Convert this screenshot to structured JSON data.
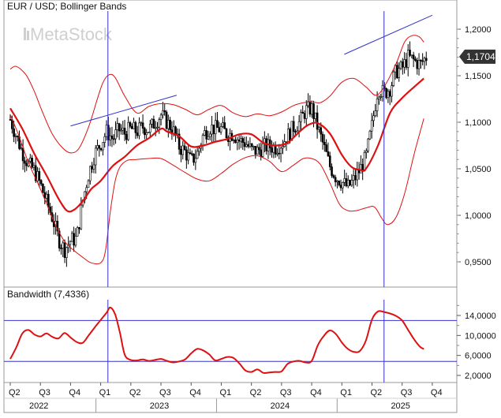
{
  "chart_data": [
    {
      "type": "candlestick",
      "title": "EUR / USD; Bollinger Bands",
      "watermark": "MetaStock",
      "last_price_label": "1,1704",
      "ylim": [
        0.92,
        1.225
      ],
      "y_ticks": [
        "1,2000",
        "1,1500",
        "1,1000",
        "1,0500",
        "1,0000",
        "0,9500"
      ],
      "y_tick_values": [
        1.2,
        1.15,
        1.1,
        1.05,
        1.0,
        0.95
      ],
      "x_range": [
        2022.25,
        2025.875
      ],
      "series": [
        {
          "name": "Middle band",
          "color": "#dd1111",
          "x": [
            2022.25,
            2022.35,
            2022.45,
            2022.55,
            2022.65,
            2022.72,
            2022.78,
            2022.85,
            2022.92,
            2023.0,
            2023.1,
            2023.2,
            2023.3,
            2023.4,
            2023.5,
            2023.55,
            2023.65,
            2023.75,
            2023.85,
            2023.95,
            2024.05,
            2024.15,
            2024.25,
            2024.35,
            2024.45,
            2024.55,
            2024.65,
            2024.72,
            2024.8,
            2024.9,
            2025.0,
            2025.08,
            2025.15,
            2025.2,
            2025.3,
            2025.4,
            2025.5,
            2025.6,
            2025.68
          ],
          "values": [
            1.115,
            1.093,
            1.066,
            1.043,
            1.018,
            1.005,
            1.006,
            1.015,
            1.028,
            1.037,
            1.053,
            1.063,
            1.075,
            1.083,
            1.093,
            1.09,
            1.085,
            1.074,
            1.075,
            1.079,
            1.082,
            1.087,
            1.087,
            1.078,
            1.075,
            1.078,
            1.09,
            1.097,
            1.099,
            1.088,
            1.065,
            1.052,
            1.049,
            1.05,
            1.075,
            1.11,
            1.126,
            1.138,
            1.147
          ]
        },
        {
          "name": "Upper band",
          "color": "#dd1111",
          "x": [
            2022.25,
            2022.3,
            2022.38,
            2022.45,
            2022.52,
            2022.6,
            2022.68,
            2022.75,
            2022.82,
            2022.9,
            2022.97,
            2023.02,
            2023.07,
            2023.12,
            2023.2,
            2023.3,
            2023.4,
            2023.5,
            2023.6,
            2023.7,
            2023.8,
            2023.9,
            2024.0,
            2024.1,
            2024.2,
            2024.3,
            2024.4,
            2024.5,
            2024.6,
            2024.68,
            2024.75,
            2024.82,
            2024.9,
            2025.0,
            2025.1,
            2025.2,
            2025.28,
            2025.35,
            2025.45,
            2025.52,
            2025.58,
            2025.64,
            2025.68
          ],
          "values": [
            1.157,
            1.16,
            1.151,
            1.133,
            1.11,
            1.087,
            1.073,
            1.067,
            1.072,
            1.095,
            1.124,
            1.143,
            1.151,
            1.148,
            1.128,
            1.11,
            1.117,
            1.12,
            1.119,
            1.114,
            1.108,
            1.114,
            1.118,
            1.11,
            1.106,
            1.109,
            1.107,
            1.111,
            1.118,
            1.121,
            1.122,
            1.121,
            1.128,
            1.143,
            1.147,
            1.138,
            1.129,
            1.138,
            1.163,
            1.186,
            1.193,
            1.192,
            1.186
          ]
        },
        {
          "name": "Lower band",
          "color": "#dd1111",
          "x": [
            2022.25,
            2022.32,
            2022.4,
            2022.48,
            2022.55,
            2022.62,
            2022.7,
            2022.78,
            2022.85,
            2022.92,
            2023.0,
            2023.04,
            2023.08,
            2023.12,
            2023.16,
            2023.22,
            2023.3,
            2023.4,
            2023.5,
            2023.6,
            2023.7,
            2023.8,
            2023.9,
            2024.0,
            2024.1,
            2024.2,
            2024.3,
            2024.4,
            2024.5,
            2024.6,
            2024.68,
            2024.75,
            2024.82,
            2024.9,
            2024.98,
            2025.05,
            2025.12,
            2025.2,
            2025.27,
            2025.33,
            2025.38,
            2025.45,
            2025.52,
            2025.6,
            2025.68
          ],
          "values": [
            1.108,
            1.086,
            1.057,
            1.034,
            1.013,
            0.991,
            0.972,
            0.962,
            0.955,
            0.949,
            0.949,
            0.962,
            1.004,
            1.037,
            1.052,
            1.059,
            1.06,
            1.061,
            1.061,
            1.054,
            1.046,
            1.039,
            1.037,
            1.045,
            1.055,
            1.062,
            1.064,
            1.058,
            1.047,
            1.054,
            1.061,
            1.061,
            1.055,
            1.035,
            1.012,
            1.005,
            1.005,
            1.008,
            1.009,
            0.997,
            0.99,
            0.998,
            1.023,
            1.066,
            1.104
          ]
        }
      ],
      "trendlines": [
        {
          "color": "#3333cc",
          "x": [
            2022.75,
            2023.63
          ],
          "values": [
            1.096,
            1.129
          ]
        },
        {
          "color": "#3333cc",
          "x": [
            2025.02,
            2025.75
          ],
          "values": [
            1.173,
            1.215
          ]
        }
      ],
      "vertical_lines": [
        2023.06,
        2025.35
      ],
      "ohlc_trace": {
        "x": [
          2022.25,
          2022.3,
          2022.35,
          2022.4,
          2022.45,
          2022.5,
          2022.55,
          2022.6,
          2022.65,
          2022.7,
          2022.75,
          2022.8,
          2022.85,
          2022.9,
          2022.95,
          2023.0,
          2023.05,
          2023.1,
          2023.15,
          2023.2,
          2023.25,
          2023.3,
          2023.35,
          2023.4,
          2023.45,
          2023.5,
          2023.55,
          2023.6,
          2023.65,
          2023.7,
          2023.75,
          2023.8,
          2023.85,
          2023.9,
          2023.95,
          2024.0,
          2024.05,
          2024.1,
          2024.15,
          2024.2,
          2024.25,
          2024.3,
          2024.35,
          2024.4,
          2024.45,
          2024.5,
          2024.55,
          2024.6,
          2024.65,
          2024.7,
          2024.75,
          2024.8,
          2024.85,
          2024.9,
          2024.95,
          2025.0,
          2025.05,
          2025.1,
          2025.15,
          2025.2,
          2025.25,
          2025.3,
          2025.35,
          2025.4,
          2025.45,
          2025.5,
          2025.55,
          2025.6,
          2025.65,
          2025.7
        ],
        "values": [
          1.103,
          1.085,
          1.068,
          1.055,
          1.048,
          1.033,
          1.015,
          0.997,
          0.975,
          0.963,
          0.973,
          0.975,
          1.015,
          1.045,
          1.066,
          1.077,
          1.09,
          1.082,
          1.092,
          1.088,
          1.093,
          1.09,
          1.095,
          1.092,
          1.1,
          1.108,
          1.1,
          1.092,
          1.074,
          1.068,
          1.058,
          1.066,
          1.086,
          1.095,
          1.093,
          1.093,
          1.087,
          1.088,
          1.08,
          1.078,
          1.07,
          1.069,
          1.074,
          1.074,
          1.073,
          1.077,
          1.085,
          1.095,
          1.1,
          1.113,
          1.115,
          1.094,
          1.074,
          1.053,
          1.041,
          1.036,
          1.03,
          1.038,
          1.049,
          1.062,
          1.097,
          1.137,
          1.131,
          1.137,
          1.155,
          1.158,
          1.17,
          1.166,
          1.162,
          1.17
        ]
      }
    },
    {
      "type": "line",
      "title": "Bandwidth (7,4336)",
      "ylim": [
        1000,
        16500
      ],
      "y_ticks": [
        "14,0000",
        "10,0000",
        "6,0000",
        "2,0000"
      ],
      "y_tick_values": [
        14000,
        10000,
        6000,
        2000
      ],
      "horizontal_lines": [
        13000,
        4800
      ],
      "series": [
        {
          "name": "Bandwidth",
          "color": "#dd1111",
          "x": [
            2022.25,
            2022.3,
            2022.35,
            2022.4,
            2022.45,
            2022.5,
            2022.55,
            2022.6,
            2022.65,
            2022.7,
            2022.75,
            2022.8,
            2022.85,
            2022.9,
            2022.95,
            2023.0,
            2023.05,
            2023.08,
            2023.12,
            2023.16,
            2023.2,
            2023.25,
            2023.3,
            2023.35,
            2023.4,
            2023.45,
            2023.5,
            2023.55,
            2023.6,
            2023.65,
            2023.7,
            2023.75,
            2023.8,
            2023.85,
            2023.9,
            2023.95,
            2024.0,
            2024.05,
            2024.1,
            2024.15,
            2024.2,
            2024.25,
            2024.3,
            2024.35,
            2024.4,
            2024.45,
            2024.5,
            2024.55,
            2024.6,
            2024.65,
            2024.7,
            2024.75,
            2024.8,
            2024.85,
            2024.9,
            2024.95,
            2025.0,
            2025.05,
            2025.1,
            2025.15,
            2025.2,
            2025.25,
            2025.3,
            2025.35,
            2025.4,
            2025.45,
            2025.5,
            2025.55,
            2025.6,
            2025.65,
            2025.68
          ],
          "values": [
            5300,
            7600,
            10400,
            11100,
            10200,
            9800,
            10400,
            9700,
            9400,
            10500,
            9600,
            8700,
            8500,
            10000,
            11600,
            13100,
            14600,
            15600,
            14200,
            10500,
            6100,
            5100,
            5000,
            5200,
            4900,
            5100,
            5300,
            4900,
            4600,
            4800,
            5200,
            6400,
            7300,
            7000,
            6200,
            5000,
            5300,
            5700,
            5500,
            4400,
            3000,
            2700,
            3200,
            2500,
            2600,
            2700,
            2800,
            4300,
            4800,
            4900,
            4600,
            4900,
            8000,
            9900,
            11000,
            10300,
            8600,
            7300,
            6700,
            6900,
            9000,
            13200,
            14800,
            14700,
            14400,
            13900,
            13000,
            11100,
            9200,
            7700,
            7300
          ]
        }
      ],
      "vertical_lines": [
        2023.06,
        2025.35
      ]
    }
  ],
  "x_axis": {
    "quarters": [
      "Q2",
      "Q3",
      "Q4",
      "Q1",
      "Q2",
      "Q3",
      "Q4",
      "Q1",
      "Q2",
      "Q3",
      "Q4",
      "Q1",
      "Q2",
      "Q3",
      "Q4"
    ],
    "quarter_values": [
      2022.25,
      2022.5,
      2022.75,
      2023.0,
      2023.25,
      2023.5,
      2023.75,
      2024.0,
      2024.25,
      2024.5,
      2024.75,
      2025.0,
      2025.25,
      2025.5,
      2025.75
    ],
    "years": [
      "2022",
      "2023",
      "2024",
      "2025"
    ],
    "year_values": [
      2022.5,
      2023.5,
      2024.5,
      2025.5
    ]
  },
  "colors": {
    "candle": "#000000",
    "band": "#dd1111",
    "trend": "#3333cc",
    "grid_line": "#3333cc",
    "watermark": "#cfcfcf",
    "price_tag_bg": "#333333",
    "price_tag_text": "#ffffff"
  }
}
